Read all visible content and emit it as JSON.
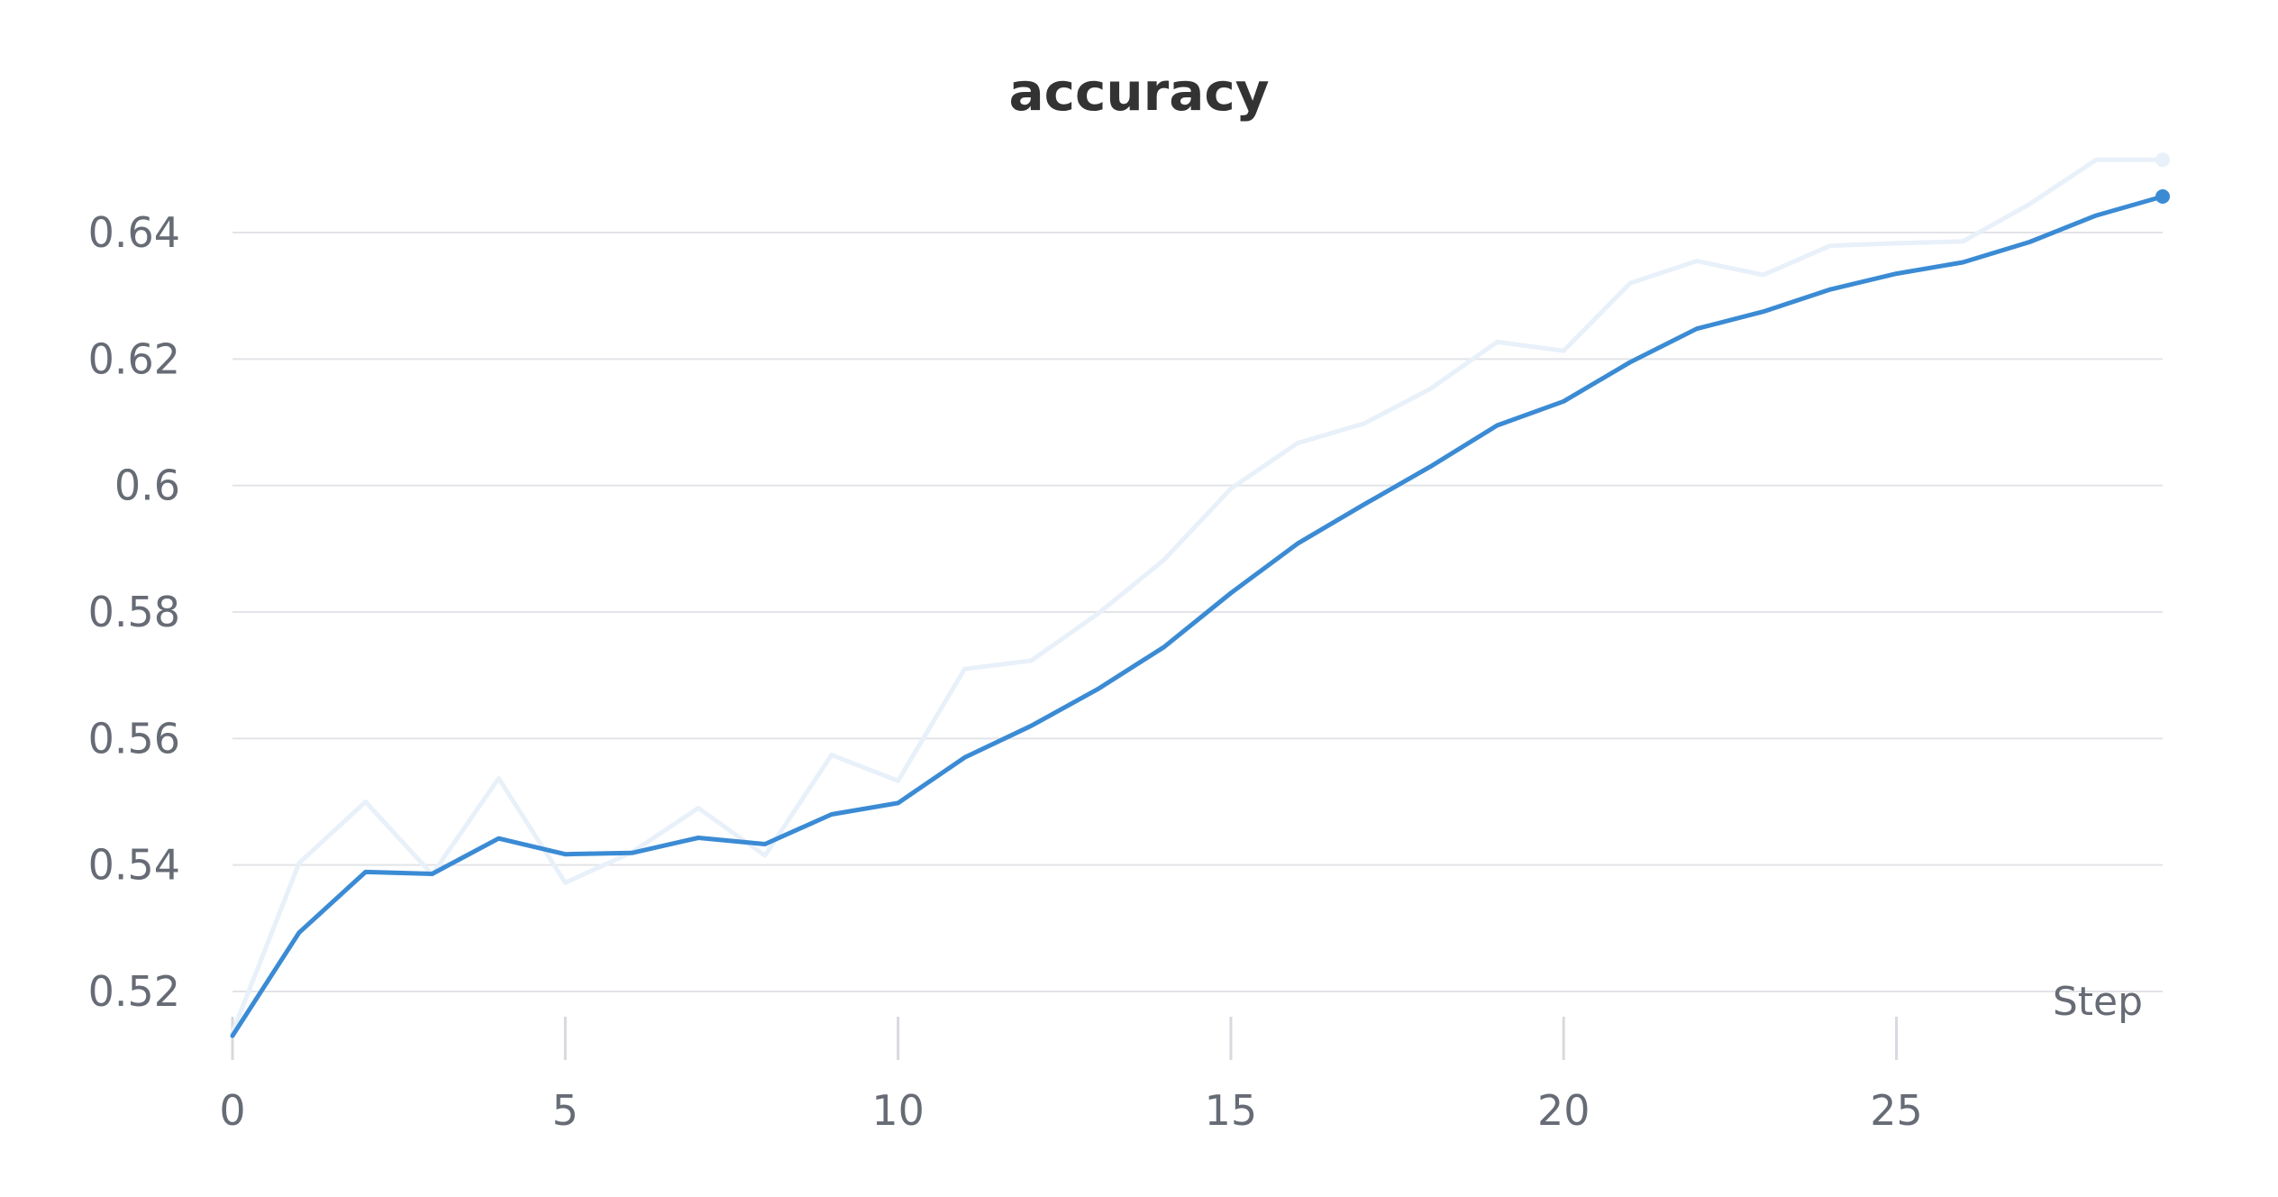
{
  "chart_data": {
    "type": "line",
    "title": "accuracy",
    "xlabel": "Step",
    "ylabel": "",
    "xlim": [
      0,
      29
    ],
    "ylim": [
      0.513,
      0.652
    ],
    "grid": true,
    "x_ticks": [
      "0",
      "5",
      "10",
      "15",
      "20",
      "25"
    ],
    "y_ticks": [
      "0.52",
      "0.54",
      "0.56",
      "0.58",
      "0.6",
      "0.62",
      "0.64"
    ],
    "x": [
      0,
      1,
      2,
      3,
      4,
      5,
      6,
      7,
      8,
      9,
      10,
      11,
      12,
      13,
      14,
      15,
      16,
      17,
      18,
      19,
      20,
      21,
      22,
      23,
      24,
      25,
      26,
      27,
      28,
      29
    ],
    "series": [
      {
        "role": "raw",
        "color": "#e8f0f9",
        "values": [
          0.5135,
          0.5403,
          0.55,
          0.5385,
          0.5537,
          0.5372,
          0.542,
          0.549,
          0.5415,
          0.5574,
          0.5533,
          0.571,
          0.5723,
          0.5797,
          0.5883,
          0.5995,
          0.6067,
          0.6098,
          0.6153,
          0.6227,
          0.6213,
          0.632,
          0.6355,
          0.6333,
          0.6379,
          0.6383,
          0.6386,
          0.6445,
          0.6515,
          0.6515
        ]
      },
      {
        "role": "smoothed",
        "color": "#3b8bd4",
        "values": [
          0.513,
          0.5293,
          0.5389,
          0.5386,
          0.5442,
          0.5417,
          0.5419,
          0.5443,
          0.5433,
          0.548,
          0.5498,
          0.557,
          0.562,
          0.5678,
          0.5745,
          0.583,
          0.5908,
          0.597,
          0.603,
          0.6095,
          0.6133,
          0.6195,
          0.6248,
          0.6275,
          0.631,
          0.6335,
          0.6353,
          0.6385,
          0.6427,
          0.6457
        ]
      }
    ]
  }
}
